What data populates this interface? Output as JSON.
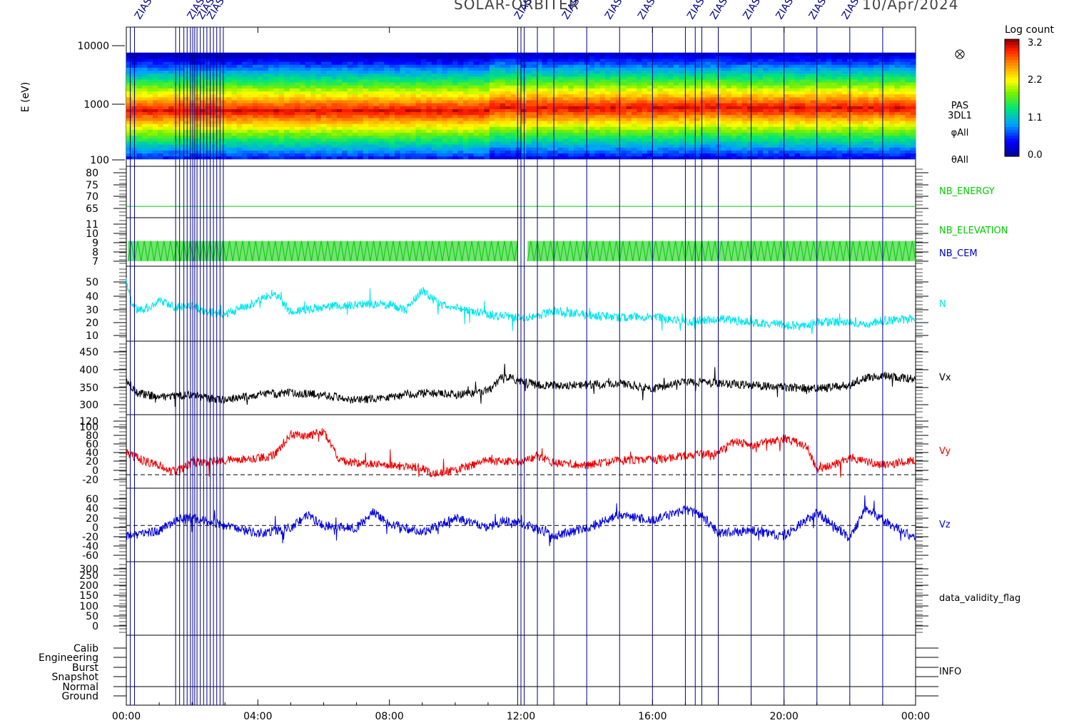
{
  "header": {
    "mission": "SOLAR-ORBITER",
    "date": "10/Apr/2024",
    "marker_label": "ZIAS"
  },
  "colorbar": {
    "title": "Log count",
    "ticks": [
      "3.2",
      "2.2",
      "1.1",
      "0.0"
    ],
    "range": [
      0.0,
      3.2
    ]
  },
  "time_axis": {
    "labels": [
      "00:00",
      "04:00",
      "08:00",
      "12:00",
      "16:00",
      "20:00",
      "00:00"
    ],
    "range_hours": [
      0,
      24
    ]
  },
  "colors": {
    "nb": "#00cc00",
    "nb_cem": "#0000cc",
    "n": "#00e5ee",
    "vx": "#000000",
    "vy": "#ee0000",
    "vz": "#0000dd",
    "markers": "#00008b"
  },
  "chart_data": [
    {
      "type": "heatmap",
      "ylabel": "E (eV)",
      "yscale": "log",
      "ylim": [
        100,
        15000
      ],
      "yticks": [
        "10000",
        "1000",
        "100"
      ],
      "right_labels": [
        "PAS",
        "3DL1",
        "φAll",
        "θAll"
      ],
      "peak_energy_eV": 750,
      "band_eV": [
        130,
        6000
      ]
    },
    {
      "type": "line",
      "series_label": "NB_ENERGY",
      "yticks": [
        "80",
        "75",
        "70",
        "65"
      ],
      "ylim": [
        58,
        82
      ],
      "value": 63.3
    },
    {
      "type": "line",
      "series_labels": [
        "NB_ELEVATION",
        "NB_CEM"
      ],
      "yticks": [
        "11",
        "10",
        "9",
        "8",
        "7"
      ],
      "ylim": [
        6.5,
        11.3
      ],
      "oscillation": [
        7,
        9
      ]
    },
    {
      "type": "line",
      "series_label": "N",
      "yticks": [
        "50",
        "40",
        "30",
        "20",
        "10"
      ],
      "ylim": [
        7,
        58
      ],
      "x": [
        0,
        0.2,
        0.5,
        1.0,
        1.5,
        2.0,
        2.5,
        3.0,
        3.5,
        4.0,
        4.5,
        5.0,
        5.5,
        6.0,
        7.0,
        8.0,
        8.5,
        9.0,
        9.5,
        10.0,
        10.5,
        11.0,
        11.5,
        12.0,
        12.5,
        13.0,
        13.5,
        14.0,
        15.0,
        16.0,
        17.0,
        18.0,
        19.0,
        20.0,
        20.5,
        21.0,
        22.0,
        22.5,
        23.0,
        24.0
      ],
      "y": [
        49,
        30,
        28,
        34,
        30,
        31,
        27,
        25,
        30,
        34,
        40,
        27,
        29,
        30,
        32,
        32,
        28,
        42,
        32,
        30,
        28,
        25,
        24,
        23,
        24,
        28,
        26,
        25,
        23,
        24,
        20,
        22,
        20,
        18,
        17,
        20,
        20,
        18,
        21,
        22
      ]
    },
    {
      "type": "line",
      "series_label": "Vx",
      "yticks": [
        "450",
        "400",
        "350",
        "300"
      ],
      "ylim": [
        283,
        475
      ],
      "x": [
        0,
        0.3,
        1.0,
        2.0,
        2.5,
        3.0,
        4.0,
        5.0,
        6.0,
        7.0,
        8.0,
        9.0,
        10.0,
        11.0,
        11.5,
        12.0,
        12.5,
        13.0,
        14.0,
        15.0,
        16.0,
        17.0,
        18.0,
        19.0,
        20.0,
        21.0,
        22.0,
        22.5,
        23.0,
        24.0
      ],
      "y": [
        375,
        340,
        330,
        335,
        325,
        322,
        335,
        340,
        335,
        320,
        330,
        340,
        335,
        345,
        385,
        370,
        360,
        360,
        360,
        365,
        350,
        370,
        365,
        360,
        355,
        350,
        360,
        380,
        385,
        375
      ]
    },
    {
      "type": "line",
      "series_label": "Vy",
      "yticks": [
        "120",
        "100",
        "80",
        "60",
        "40",
        "20",
        "0",
        "-20"
      ],
      "ylim": [
        -28,
        125
      ],
      "reference_zero": true,
      "x": [
        0,
        0.5,
        1.0,
        1.5,
        2.0,
        3.0,
        4.0,
        4.5,
        5.0,
        5.5,
        6.0,
        6.5,
        7.0,
        8.0,
        9.0,
        9.3,
        10.0,
        11.0,
        12.0,
        12.5,
        13.0,
        14.0,
        15.0,
        16.0,
        17.0,
        18.0,
        18.5,
        19.0,
        20.0,
        20.7,
        21.0,
        22.0,
        23.0,
        24.0
      ],
      "y": [
        45,
        30,
        20,
        5,
        25,
        30,
        35,
        40,
        85,
        80,
        90,
        30,
        25,
        20,
        15,
        0,
        10,
        30,
        25,
        40,
        25,
        20,
        30,
        30,
        40,
        45,
        70,
        60,
        75,
        60,
        10,
        35,
        20,
        30
      ]
    },
    {
      "type": "line",
      "series_label": "Vz",
      "yticks": [
        "60",
        "40",
        "20",
        "0",
        "-20",
        "-40",
        "-60"
      ],
      "ylim": [
        -70,
        72
      ],
      "reference_zero": true,
      "x": [
        0,
        0.5,
        1.0,
        1.5,
        2.0,
        3.0,
        4.0,
        5.0,
        5.5,
        6.0,
        7.0,
        7.5,
        8.0,
        9.0,
        10.0,
        11.0,
        11.5,
        12.0,
        13.0,
        14.0,
        15.0,
        16.0,
        17.0,
        17.5,
        18.0,
        19.0,
        20.0,
        21.0,
        22.0,
        22.5,
        23.0,
        24.0
      ],
      "y": [
        -20,
        -15,
        -10,
        10,
        15,
        0,
        -15,
        -5,
        20,
        0,
        -5,
        25,
        5,
        -15,
        15,
        -5,
        10,
        5,
        -20,
        -5,
        20,
        10,
        30,
        20,
        -15,
        -10,
        -20,
        25,
        -25,
        35,
        10,
        -25
      ]
    },
    {
      "type": "line",
      "series_label": "data_validity_flag",
      "yticks": [
        "300",
        "250",
        "200",
        "150",
        "100",
        "50",
        "0"
      ],
      "ylim": [
        -25,
        325
      ]
    },
    {
      "type": "line",
      "series_label": "INFO",
      "categories": [
        "Calib",
        "Engineering",
        "Burst",
        "Snapshot",
        "Normal",
        "Ground"
      ]
    }
  ],
  "marker_times_hours": [
    0.12,
    0.25,
    1.5,
    1.62,
    1.75,
    1.85,
    1.95,
    2.02,
    2.08,
    2.15,
    2.25,
    2.35,
    2.45,
    2.55,
    2.65,
    2.75,
    2.85,
    2.95,
    11.9,
    12.0,
    12.1,
    12.5,
    13.0,
    14.0,
    15.0,
    16.0,
    17.0,
    17.3,
    17.5,
    18.0,
    19.0,
    20.0,
    21.0,
    22.0,
    23.0
  ]
}
